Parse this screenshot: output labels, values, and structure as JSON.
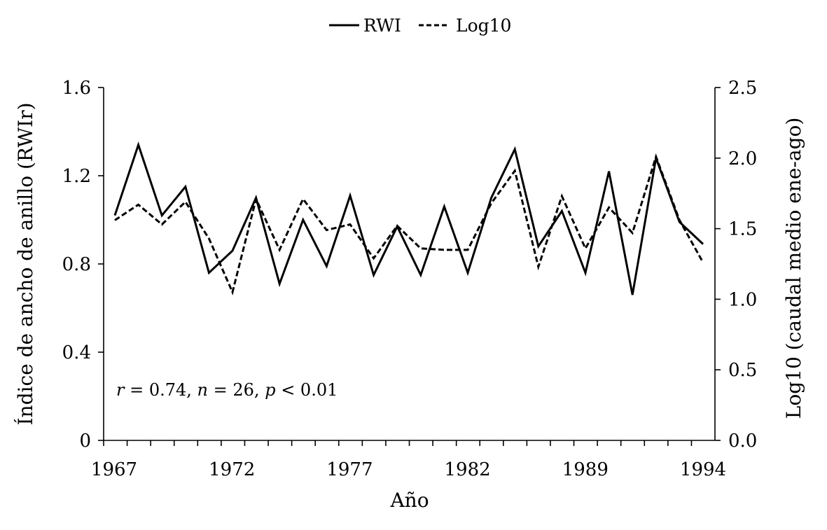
{
  "chart_data": {
    "type": "line",
    "title": "",
    "xlabel": "Año",
    "ylabel_left": "Índice de ancho de anillo (RWIr)",
    "ylabel_right": "Log10 (caudal medio ene-ago)",
    "x_tick_labels": [
      "1967",
      "1972",
      "1977",
      "1982",
      "1989",
      "1994"
    ],
    "ylim_left": [
      0,
      1.6
    ],
    "yticks_left": [
      "0",
      "0.4",
      "0.8",
      "1.2",
      "1.6"
    ],
    "ylim_right": [
      0,
      2.5
    ],
    "yticks_right": [
      "0.0",
      "0.5",
      "1.0",
      "1.5",
      "2.0",
      "2.5"
    ],
    "grid": false,
    "legend_position": "top-center",
    "annotation": {
      "r_sym": "r",
      "r_val": " = 0.74, ",
      "n_sym": "n",
      "n_val": " = 26, ",
      "p_sym": "p",
      "p_val": " < 0.01"
    },
    "series": [
      {
        "name": "RWI",
        "axis": "left",
        "style": "solid",
        "values": [
          1.02,
          1.34,
          1.02,
          1.15,
          0.76,
          0.86,
          1.1,
          0.71,
          1.0,
          0.79,
          1.11,
          0.75,
          0.97,
          0.75,
          1.06,
          0.76,
          1.1,
          1.32,
          0.88,
          1.04,
          0.76,
          1.22,
          0.66,
          1.28,
          0.99,
          0.89
        ]
      },
      {
        "name": "Log10",
        "axis": "right",
        "style": "dashed",
        "values": [
          1.56,
          1.67,
          1.53,
          1.69,
          1.43,
          1.05,
          1.71,
          1.35,
          1.71,
          1.49,
          1.53,
          1.29,
          1.52,
          1.36,
          1.35,
          1.35,
          1.68,
          1.91,
          1.23,
          1.73,
          1.36,
          1.65,
          1.47,
          2.01,
          1.56,
          1.26
        ]
      }
    ]
  }
}
